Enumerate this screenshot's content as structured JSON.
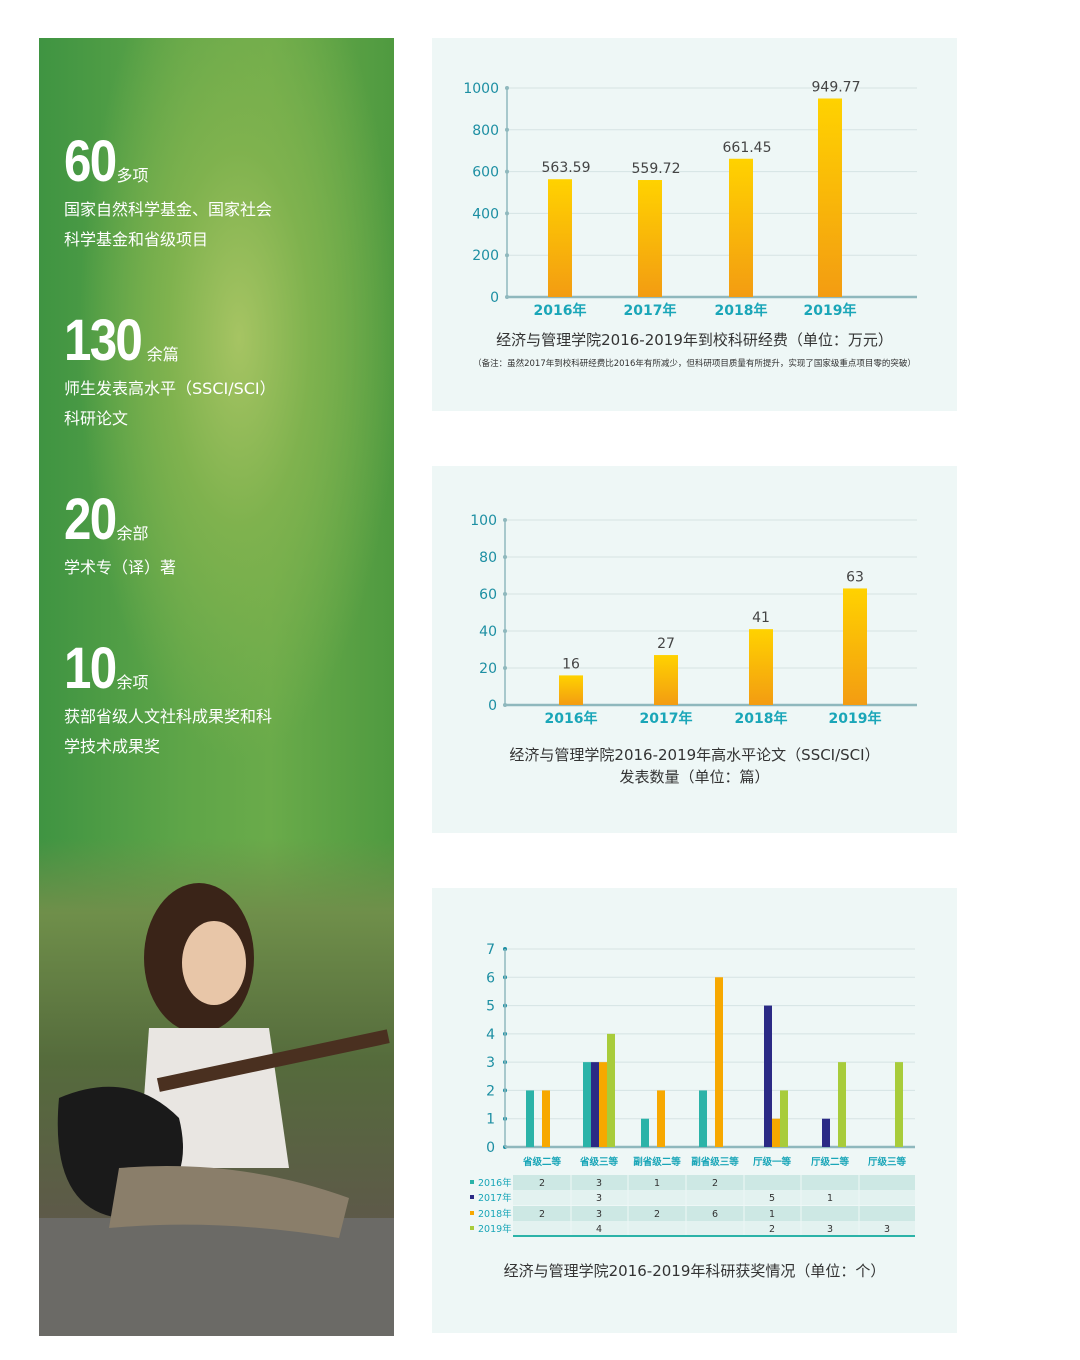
{
  "stats": [
    {
      "number": "60",
      "unit": "多项",
      "desc": "国家自然科学基金、国家社会\n科学基金和省级项目"
    },
    {
      "number": "130",
      "unit": "余篇",
      "desc": "师生发表高水平（SSCI/SCI）\n科研论文"
    },
    {
      "number": "20",
      "unit": "余部",
      "desc": "学术专（译）著"
    },
    {
      "number": "10",
      "unit": "余项",
      "desc": "获部省级人文社科成果奖和科\n学技术成果奖"
    }
  ],
  "photo": {
    "subject": "girl-playing-guitar"
  },
  "colors": {
    "bar_top": "#ffd200",
    "bar_bottom": "#f39c12",
    "category": "#1aa6b8",
    "axis": "#8fb8bd",
    "s2016": "#2bb3a8",
    "s2017": "#2b2a85",
    "s2018": "#f7a800",
    "s2019": "#a8cc3a"
  },
  "chart_data": [
    {
      "type": "bar",
      "title": "经济与管理学院2016-2019年到校科研经费（单位：万元）",
      "note": "（备注：虽然2017年到校科研经费比2016年有所减少，但科研项目质量有所提升，实现了国家级重点项目零的突破）",
      "categories": [
        "2016年",
        "2017年",
        "2018年",
        "2019年"
      ],
      "values": [
        563.59,
        559.72,
        661.45,
        949.77
      ],
      "value_labels": [
        "563.59",
        "559.72",
        "661.45",
        "949.77"
      ],
      "ylim": [
        0,
        1000
      ],
      "yticks": [
        "0",
        "200",
        "400",
        "600",
        "800",
        "1000"
      ],
      "grid": true
    },
    {
      "type": "bar",
      "title": "经济与管理学院2016-2019年高水平论文（SSCI/SCI）",
      "title_line2": "发表数量（单位：篇）",
      "categories": [
        "2016年",
        "2017年",
        "2018年",
        "2019年"
      ],
      "values": [
        16,
        27,
        41,
        63
      ],
      "value_labels": [
        "16",
        "27",
        "41",
        "63"
      ],
      "ylim": [
        0,
        100
      ],
      "yticks": [
        "0",
        "20",
        "40",
        "60",
        "80",
        "100"
      ],
      "grid": true
    },
    {
      "type": "bar",
      "title": "经济与管理学院2016-2019年科研获奖情况（单位：个）",
      "categories": [
        "省级二等",
        "省级三等",
        "副省级二等",
        "副省级三等",
        "厅级一等",
        "厅级二等",
        "厅级三等"
      ],
      "ylim": [
        0,
        7
      ],
      "yticks": [
        "0",
        "1",
        "2",
        "3",
        "4",
        "5",
        "6",
        "7"
      ],
      "grid": true,
      "series": [
        {
          "name": "2016年",
          "values": [
            2,
            3,
            1,
            2,
            null,
            null,
            null
          ]
        },
        {
          "name": "2017年",
          "values": [
            null,
            3,
            null,
            null,
            5,
            1,
            null
          ]
        },
        {
          "name": "2018年",
          "values": [
            2,
            3,
            2,
            6,
            1,
            null,
            null
          ]
        },
        {
          "name": "2019年",
          "values": [
            null,
            4,
            null,
            null,
            2,
            3,
            3
          ]
        }
      ]
    }
  ]
}
